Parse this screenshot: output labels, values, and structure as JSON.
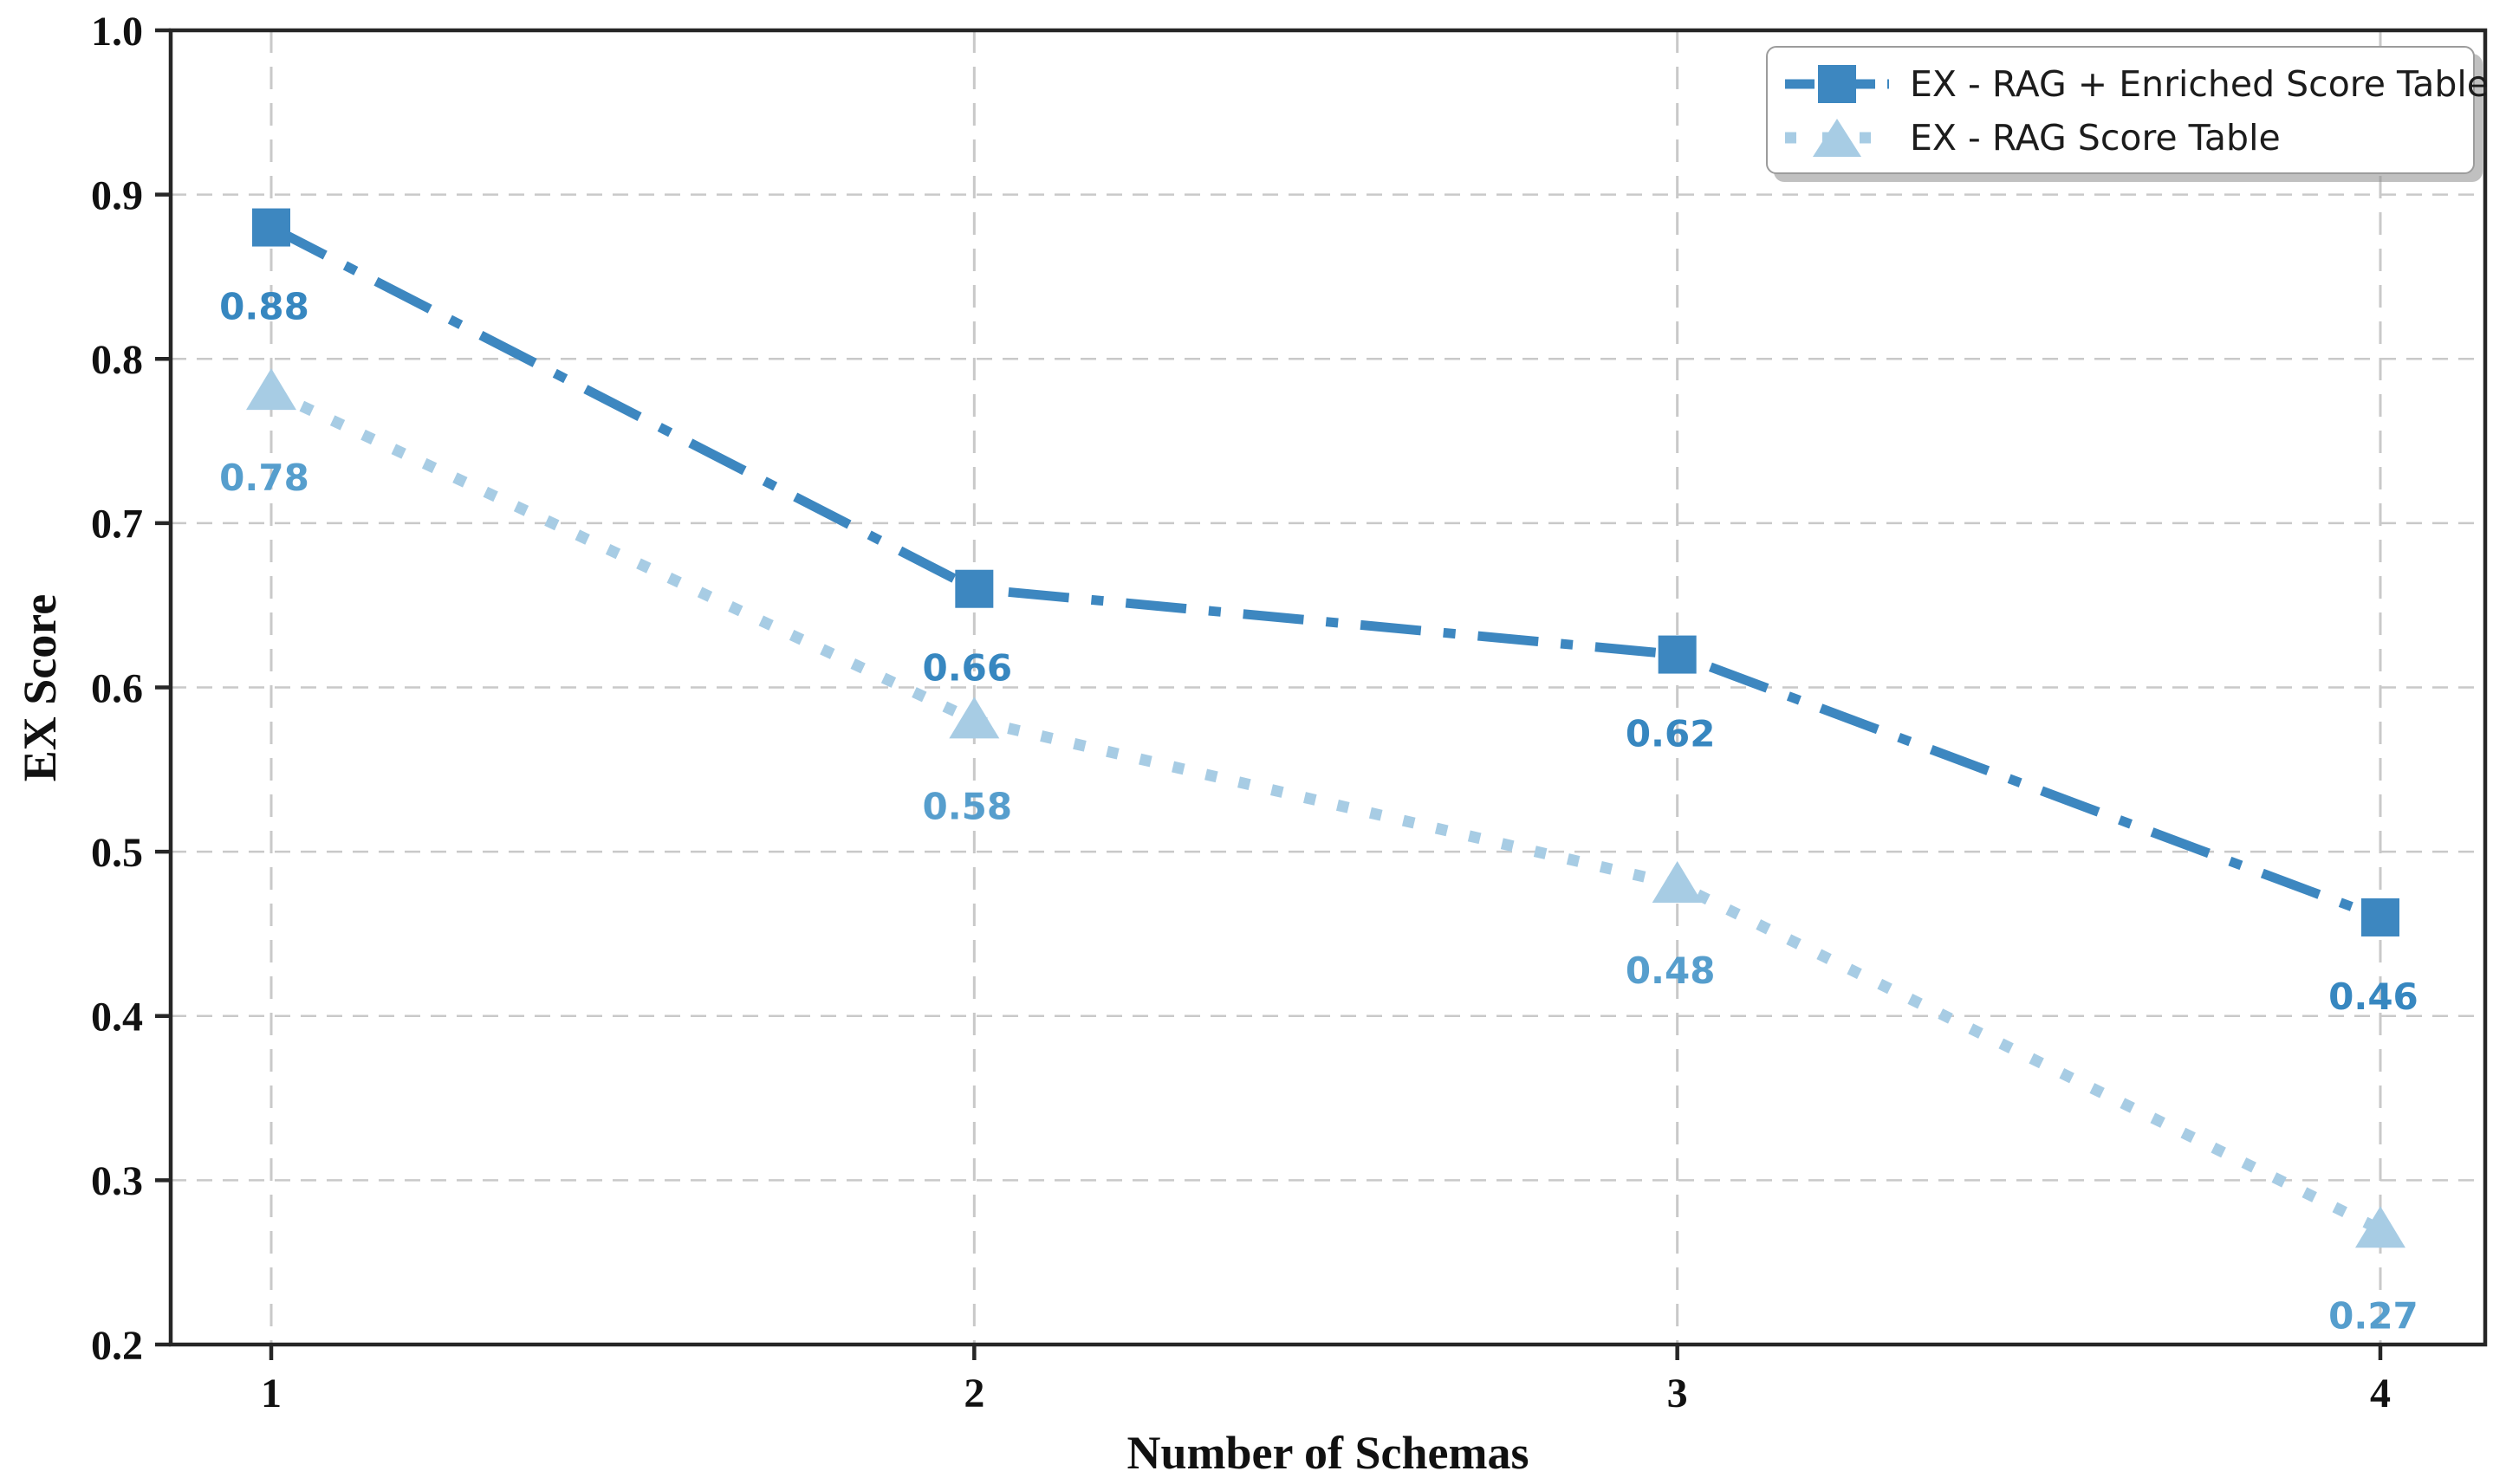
{
  "chart_data": {
    "type": "line",
    "title": "",
    "xlabel": "Number of Schemas",
    "ylabel": "EX Score",
    "x": [
      1,
      2,
      3,
      4
    ],
    "xticks": [
      "1",
      "2",
      "3",
      "4"
    ],
    "yticks": [
      0.2,
      0.3,
      0.4,
      0.5,
      0.6,
      0.7,
      0.8,
      0.9,
      1.0
    ],
    "ylim": [
      0.2,
      1.0
    ],
    "grid": true,
    "legend_position": "upper right",
    "series": [
      {
        "name": "EX - RAG + Enriched Score Table",
        "values": [
          0.88,
          0.66,
          0.62,
          0.46
        ],
        "labels": [
          "0.88",
          "0.66",
          "0.62",
          "0.46"
        ],
        "color": "#3d87c0",
        "label_color": "#3787c0",
        "marker": "square",
        "linestyle": "dashdot"
      },
      {
        "name": "EX - RAG Score Table",
        "values": [
          0.78,
          0.58,
          0.48,
          0.27
        ],
        "labels": [
          "0.78",
          "0.58",
          "0.48",
          "0.27"
        ],
        "color": "#a7cce4",
        "label_color": "#569ecd",
        "marker": "triangle",
        "linestyle": "dotted"
      }
    ],
    "axis_color": "#262626",
    "tick_label_color": "#111111",
    "grid_color": "#c9c9c9"
  }
}
